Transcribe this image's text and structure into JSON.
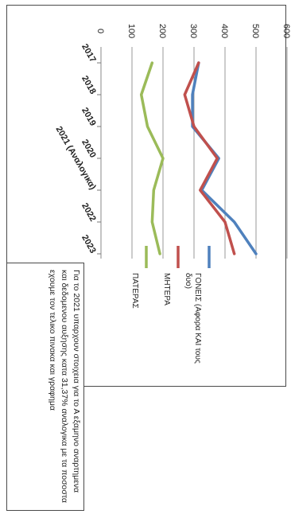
{
  "chart_data": {
    "type": "line",
    "categories": [
      "2017",
      "2018",
      "2019",
      "2020",
      "2021 (Αναλογικα)",
      "2022",
      "2023"
    ],
    "series": [
      {
        "name": "ΓΟΝΕΙΣ (Αφορα ΚΑΙ τους δυο)",
        "color": "#4f81bd",
        "values": [
          315,
          295,
          295,
          380,
          325,
          430,
          500
        ]
      },
      {
        "name": "ΜΗΤΕΡΑ",
        "color": "#c0504d",
        "values": [
          315,
          270,
          300,
          375,
          320,
          400,
          430
        ]
      },
      {
        "name": "ΠΑΤΕΡΑΣ",
        "color": "#9bbb59",
        "values": [
          165,
          130,
          150,
          200,
          170,
          165,
          190
        ]
      }
    ],
    "ylim": [
      0,
      600
    ],
    "yticks": [
      "0",
      "100",
      "200",
      "300",
      "400",
      "500",
      "600"
    ],
    "grid": true,
    "legend_position": "right"
  },
  "note": "Για το 2021 υπαρχουν στοιχεια για το Α εξαμηνο αναρτημενα και δεδομενου αυξησης κατα 31,37% αναλογικα με τα ποσοστα εχουμε τον τελικο πινακα και γραφημα"
}
